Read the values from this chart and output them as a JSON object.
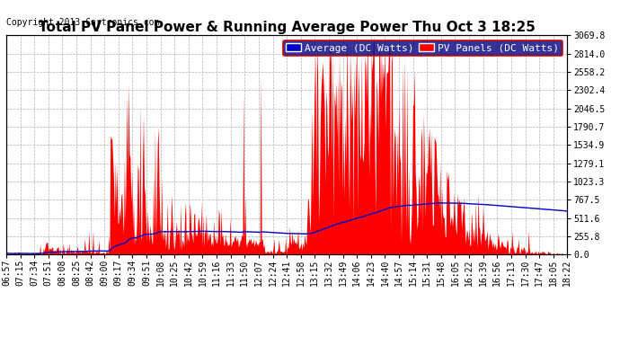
{
  "title": "Total PV Panel Power & Running Average Power Thu Oct 3 18:25",
  "copyright": "Copyright 2013 Cartronics.com",
  "legend_avg": "Average (DC Watts)",
  "legend_pv": "PV Panels (DC Watts)",
  "yticks": [
    0.0,
    255.8,
    511.6,
    767.5,
    1023.3,
    1279.1,
    1534.9,
    1790.7,
    2046.5,
    2302.4,
    2558.2,
    2814.0,
    3069.8
  ],
  "ymax": 3069.8,
  "ymin": 0.0,
  "bg_color": "#ffffff",
  "plot_bg_color": "#ffffff",
  "grid_color": "#b0b0b0",
  "bar_color": "#ff0000",
  "avg_color": "#0000cc",
  "title_fontsize": 11,
  "copyright_fontsize": 7,
  "tick_fontsize": 7,
  "legend_fontsize": 8,
  "x_labels": [
    "06:57",
    "07:15",
    "07:34",
    "07:51",
    "08:08",
    "08:25",
    "08:42",
    "09:00",
    "09:17",
    "09:34",
    "09:51",
    "10:08",
    "10:25",
    "10:42",
    "10:59",
    "11:16",
    "11:33",
    "11:50",
    "12:07",
    "12:24",
    "12:41",
    "12:58",
    "13:15",
    "13:32",
    "13:49",
    "14:06",
    "14:23",
    "14:40",
    "14:57",
    "15:14",
    "15:31",
    "15:48",
    "16:05",
    "16:22",
    "16:39",
    "16:56",
    "17:13",
    "17:30",
    "17:47",
    "18:05",
    "18:22"
  ]
}
